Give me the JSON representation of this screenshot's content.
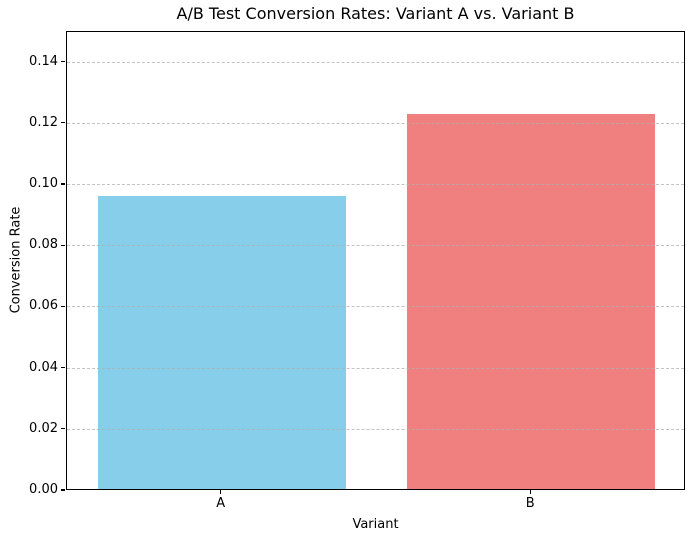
{
  "chart_data": {
    "type": "bar",
    "title": "A/B Test Conversion Rates: Variant A vs. Variant B",
    "xlabel": "Variant",
    "ylabel": "Conversion Rate",
    "categories": [
      "A",
      "B"
    ],
    "values": [
      0.096,
      0.123
    ],
    "bar_colors": [
      "#87CEEB",
      "#F08080"
    ],
    "bar_width_ratio": 0.8,
    "ylim": [
      0,
      0.15
    ],
    "yticks": [
      0.0,
      0.02,
      0.04,
      0.06,
      0.08,
      0.1,
      0.12,
      0.14
    ],
    "ytick_labels": [
      "0.00",
      "0.02",
      "0.04",
      "0.06",
      "0.08",
      "0.10",
      "0.12",
      "0.14"
    ],
    "xlim_slots": 2,
    "grid": {
      "axis": "y",
      "linestyle": "dashed",
      "color": "#b0b0b0",
      "alpha": 0.7,
      "above_bars": true
    },
    "legend": "none",
    "spine_color": "#000000",
    "background_color": "#ffffff"
  }
}
